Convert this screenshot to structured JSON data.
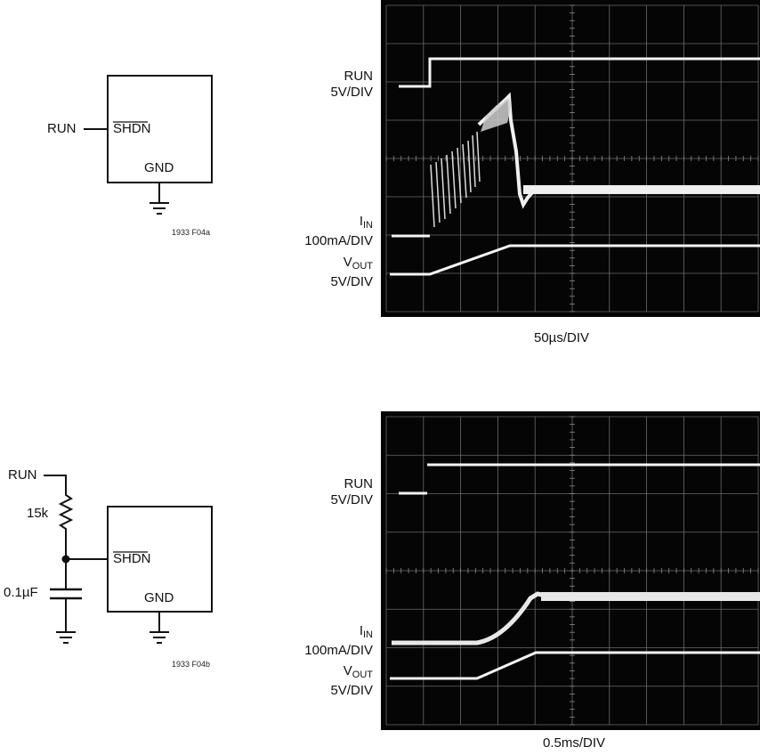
{
  "top": {
    "schematic": {
      "run_label": "RUN",
      "pin_label": "SHDN",
      "gnd_label": "GND",
      "fig_id": "1933 F04a"
    },
    "scope": {
      "run_label": "RUN",
      "run_scale": "5V/DIV",
      "iin_label": "I",
      "iin_sub": "IN",
      "iin_scale": "100mA/DIV",
      "vout_label": "V",
      "vout_sub": "OUT",
      "vout_scale": "5V/DIV",
      "time_scale": "50µs/DIV"
    }
  },
  "bottom": {
    "schematic": {
      "run_label": "RUN",
      "resistor_label": "15k",
      "capacitor_label": "0.1µF",
      "pin_label": "SHDN",
      "gnd_label": "GND",
      "fig_id": "1933 F04b"
    },
    "scope": {
      "run_label": "RUN",
      "run_scale": "5V/DIV",
      "iin_label": "I",
      "iin_sub": "IN",
      "iin_scale": "100mA/DIV",
      "vout_label": "V",
      "vout_sub": "OUT",
      "vout_scale": "5V/DIV",
      "time_scale": "0.5ms/DIV"
    }
  }
}
